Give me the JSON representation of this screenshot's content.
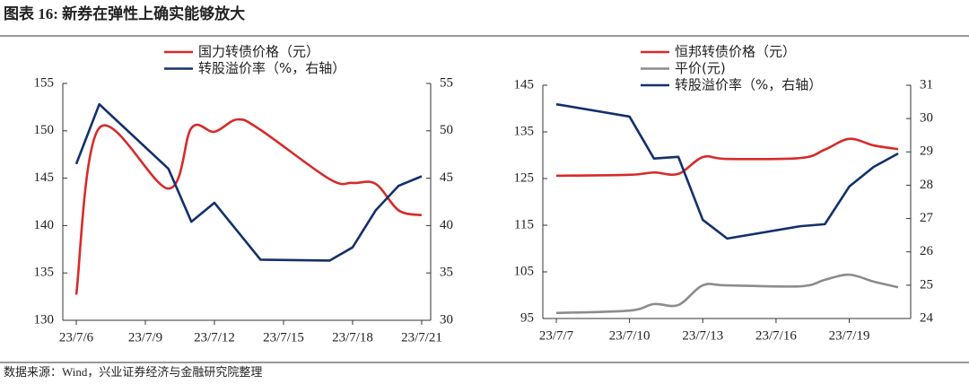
{
  "title": "图表 16:  新券在弹性上确实能够放大",
  "source": "数据来源：Wind，兴业证券经济与金融研究院整理",
  "chart_data": [
    {
      "type": "line",
      "x": [
        "23/7/6",
        "23/7/7",
        "23/7/10",
        "23/7/11",
        "23/7/12",
        "23/7/13",
        "23/7/14",
        "23/7/17",
        "23/7/18",
        "23/7/19",
        "23/7/20",
        "23/7/21"
      ],
      "xticks": [
        "23/7/6",
        "23/7/9",
        "23/7/12",
        "23/7/15",
        "23/7/18",
        "23/7/21"
      ],
      "ylim": [
        130,
        155
      ],
      "yticks": [
        130,
        135,
        140,
        145,
        150,
        155
      ],
      "y2lim": [
        30,
        55
      ],
      "y2ticks": [
        30,
        35,
        40,
        45,
        50,
        55
      ],
      "series": [
        {
          "name": "国力转债价格（元）",
          "color": "#d62b2b",
          "smooth": true,
          "values": [
            132.7,
            150.3,
            143.9,
            150.3,
            149.9,
            151.2,
            150.1,
            144.9,
            144.5,
            144.4,
            141.6,
            141.1
          ]
        },
        {
          "name": "转股溢价率（%，右轴）",
          "color": "#13306b",
          "axis": "y2",
          "smooth": false,
          "values": [
            46.5,
            52.8,
            46.0,
            40.4,
            42.4,
            39.4,
            36.4,
            36.3,
            37.7,
            41.6,
            44.2,
            45.2
          ]
        }
      ]
    },
    {
      "type": "line",
      "x": [
        "23/7/7",
        "23/7/10",
        "23/7/11",
        "23/7/12",
        "23/7/13",
        "23/7/14",
        "23/7/17",
        "23/7/18",
        "23/7/19",
        "23/7/20",
        "23/7/21"
      ],
      "xticks": [
        "23/7/7",
        "23/7/10",
        "23/7/13",
        "23/7/16",
        "23/7/19"
      ],
      "ylim": [
        95,
        145
      ],
      "yticks": [
        95,
        105,
        115,
        125,
        135,
        145
      ],
      "y2lim": [
        24,
        31
      ],
      "y2ticks": [
        24,
        25,
        26,
        27,
        28,
        29,
        30,
        31
      ],
      "series": [
        {
          "name": "恒邦转债价格（元）",
          "color": "#d62b2b",
          "smooth": true,
          "values": [
            125.6,
            125.8,
            126.3,
            126.0,
            129.6,
            129.2,
            129.4,
            131.2,
            133.5,
            132.1,
            131.3
          ]
        },
        {
          "name": "平价(元)",
          "color": "#8c8c8c",
          "smooth": true,
          "values": [
            96.2,
            96.7,
            98.1,
            97.9,
            102.1,
            102.1,
            101.9,
            103.3,
            104.4,
            102.9,
            101.7
          ]
        },
        {
          "name": "转股溢价率（%，右轴）",
          "color": "#13306b",
          "axis": "y2",
          "smooth": false,
          "values": [
            30.43,
            30.06,
            28.8,
            28.85,
            26.96,
            26.4,
            26.77,
            26.83,
            27.96,
            28.55,
            28.95
          ]
        }
      ]
    }
  ]
}
